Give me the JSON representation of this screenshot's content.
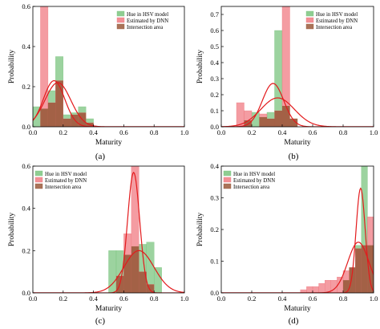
{
  "colors": {
    "hue": "#7bc47f",
    "dnn": "#f07b83",
    "intersection": "#9b5a3c",
    "curve": "#e31a1c"
  },
  "chart_data": [
    {
      "type": "bar",
      "panel_label": "(a)",
      "xlabel": "Maturity",
      "ylabel": "Probability",
      "xlim": [
        0,
        1.0
      ],
      "ylim": [
        0,
        0.6
      ],
      "xticks": [
        "0.0",
        "0.2",
        "0.4",
        "0.6",
        "0.8",
        "1.0"
      ],
      "yticks": [
        "0.0",
        "0.2",
        "0.4",
        "0.6"
      ],
      "legend_placement": "top-right",
      "legend": [
        "Hue in HSV model",
        "Estimated by DNN",
        "Intersection area"
      ],
      "bin_width": 0.05,
      "series": [
        {
          "name": "Hue in HSV model",
          "bins": [
            [
              0.0,
              0.1
            ],
            [
              0.05,
              0.09
            ],
            [
              0.1,
              0.18
            ],
            [
              0.15,
              0.35
            ],
            [
              0.2,
              0.06
            ],
            [
              0.25,
              0.07
            ],
            [
              0.3,
              0.1
            ],
            [
              0.35,
              0.04
            ]
          ]
        },
        {
          "name": "Estimated by DNN",
          "bins": [
            [
              0.05,
              0.6
            ],
            [
              0.1,
              0.12
            ],
            [
              0.15,
              0.23
            ],
            [
              0.2,
              0.04
            ],
            [
              0.25,
              0.06
            ],
            [
              0.3,
              0.07
            ],
            [
              0.35,
              0.02
            ]
          ]
        }
      ],
      "curves": [
        {
          "mean": 0.165,
          "std": 0.085,
          "peak": 0.22
        },
        {
          "mean": 0.14,
          "std": 0.07,
          "peak": 0.23
        }
      ]
    },
    {
      "type": "bar",
      "panel_label": "(b)",
      "xlabel": "Maturity",
      "ylabel": "Probability",
      "xlim": [
        0,
        1.0
      ],
      "ylim": [
        0,
        0.75
      ],
      "xticks": [
        "0.0",
        "0.2",
        "0.4",
        "0.6",
        "0.8",
        "1.0"
      ],
      "yticks": [
        "0.0",
        "0.1",
        "0.2",
        "0.3",
        "0.4",
        "0.5",
        "0.6",
        "0.7"
      ],
      "legend_placement": "top-right",
      "legend": [
        "Hue in HSV model",
        "Estimated by DNN",
        "Intersection area"
      ],
      "bin_width": 0.05,
      "series": [
        {
          "name": "Hue in HSV model",
          "bins": [
            [
              0.15,
              0.04
            ],
            [
              0.2,
              0.09
            ],
            [
              0.25,
              0.06
            ],
            [
              0.3,
              0.09
            ],
            [
              0.35,
              0.6
            ],
            [
              0.4,
              0.13
            ],
            [
              0.45,
              0.05
            ]
          ]
        },
        {
          "name": "Estimated by DNN",
          "bins": [
            [
              0.1,
              0.15
            ],
            [
              0.15,
              0.1
            ],
            [
              0.25,
              0.08
            ],
            [
              0.3,
              0.05
            ],
            [
              0.35,
              0.1
            ],
            [
              0.4,
              0.75
            ],
            [
              0.45,
              0.05
            ]
          ]
        }
      ],
      "curves": [
        {
          "mean": 0.34,
          "std": 0.07,
          "peak": 0.27
        },
        {
          "mean": 0.37,
          "std": 0.11,
          "peak": 0.18
        }
      ]
    },
    {
      "type": "bar",
      "panel_label": "(c)",
      "xlabel": "Maturity",
      "ylabel": "Probability",
      "xlim": [
        0,
        1.0
      ],
      "ylim": [
        0,
        0.6
      ],
      "xticks": [
        "0.0",
        "0.2",
        "0.4",
        "0.6",
        "0.8",
        "1.0"
      ],
      "yticks": [
        "0.0",
        "0.2",
        "0.4",
        "0.6"
      ],
      "legend_placement": "top-left",
      "legend": [
        "Hue in HSV model",
        "Estimated by DNN",
        "Intersection area"
      ],
      "bin_width": 0.05,
      "series": [
        {
          "name": "Hue in HSV model",
          "bins": [
            [
              0.5,
              0.2
            ],
            [
              0.55,
              0.2
            ],
            [
              0.6,
              0.18
            ],
            [
              0.65,
              0.22
            ],
            [
              0.7,
              0.23
            ],
            [
              0.75,
              0.24
            ],
            [
              0.8,
              0.12
            ]
          ]
        },
        {
          "name": "Estimated by DNN",
          "bins": [
            [
              0.55,
              0.08
            ],
            [
              0.6,
              0.28
            ],
            [
              0.65,
              0.6
            ],
            [
              0.7,
              0.1
            ],
            [
              0.75,
              0.04
            ]
          ]
        }
      ],
      "curves": [
        {
          "mean": 0.665,
          "std": 0.04,
          "peak": 0.57
        },
        {
          "mean": 0.7,
          "std": 0.1,
          "peak": 0.2
        }
      ]
    },
    {
      "type": "bar",
      "panel_label": "(d)",
      "xlabel": "Maturity",
      "ylabel": "Probability",
      "xlim": [
        0,
        1.0
      ],
      "ylim": [
        0,
        0.4
      ],
      "xticks": [
        "0.0",
        "0.2",
        "0.4",
        "0.6",
        "0.8",
        "1.0"
      ],
      "yticks": [
        "0.0",
        "0.1",
        "0.2",
        "0.3",
        "0.4"
      ],
      "legend_placement": "top-left",
      "legend": [
        "Hue in HSV model",
        "Estimated by DNN",
        "Intersection area"
      ],
      "bin_width": 0.04,
      "series": [
        {
          "name": "Hue in HSV model",
          "bins": [
            [
              0.8,
              0.04
            ],
            [
              0.84,
              0.08
            ],
            [
              0.88,
              0.15
            ],
            [
              0.92,
              0.42
            ],
            [
              0.96,
              0.15
            ]
          ]
        },
        {
          "name": "Estimated by DNN",
          "bins": [
            [
              0.52,
              0.01
            ],
            [
              0.56,
              0.02
            ],
            [
              0.6,
              0.02
            ],
            [
              0.64,
              0.03
            ],
            [
              0.68,
              0.04
            ],
            [
              0.72,
              0.04
            ],
            [
              0.76,
              0.05
            ],
            [
              0.8,
              0.07
            ],
            [
              0.84,
              0.08
            ],
            [
              0.88,
              0.14
            ],
            [
              0.92,
              0.15
            ],
            [
              0.96,
              0.24
            ]
          ]
        }
      ],
      "curves": [
        {
          "mean": 0.915,
          "std": 0.03,
          "peak": 0.33
        },
        {
          "mean": 0.9,
          "std": 0.07,
          "peak": 0.16
        }
      ]
    }
  ]
}
